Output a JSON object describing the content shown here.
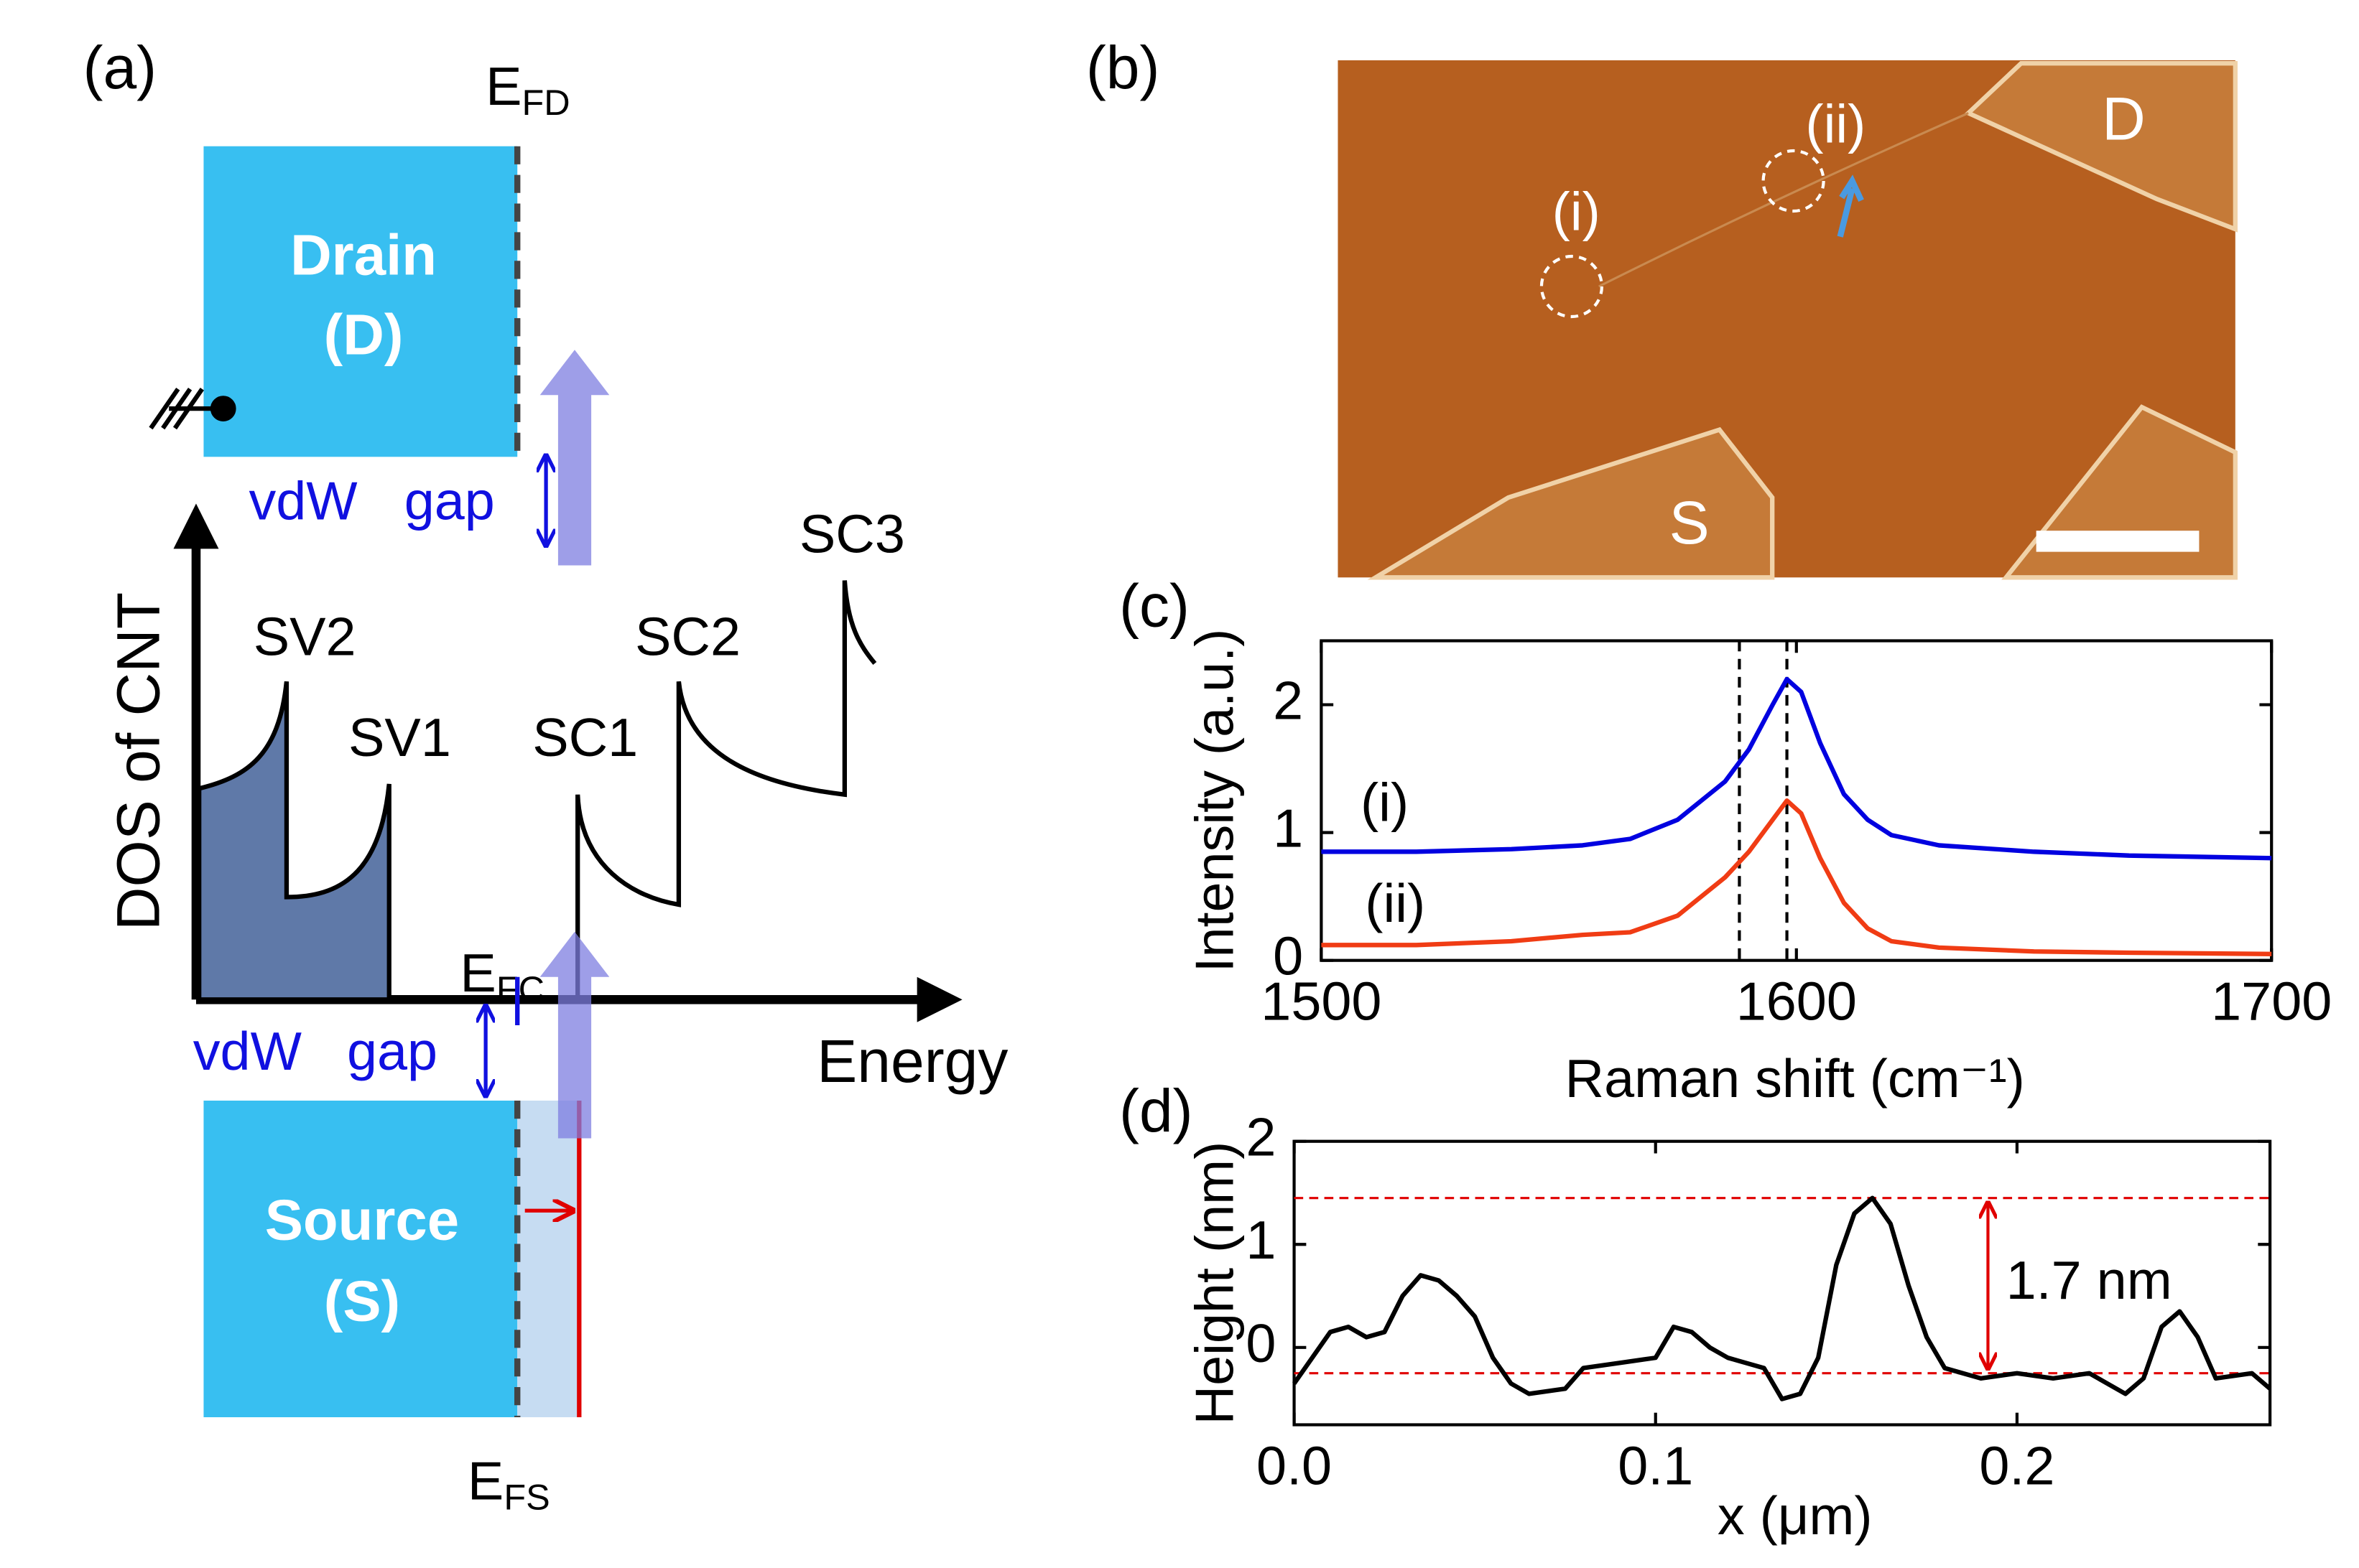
{
  "panel_a": {
    "label": "(a)",
    "efd": {
      "main": "E",
      "sub": "FD"
    },
    "drain": [
      "Drain",
      "(D)"
    ],
    "vdw_top": [
      "vdW",
      "gap"
    ],
    "dos_axis": "DOS of CNT",
    "peaks": [
      "SV2",
      "SV1",
      "SC1",
      "SC2",
      "SC3"
    ],
    "efc": {
      "main": "E",
      "sub": "FC"
    },
    "vdw_bottom": [
      "vdW",
      "gap"
    ],
    "energy_axis": "Energy",
    "source": [
      "Source",
      "(S)"
    ],
    "efs": {
      "main": "E",
      "sub": "FS"
    }
  },
  "panel_b": {
    "label": "(b)",
    "spots": [
      "(i)",
      "(ii)"
    ],
    "drain": "D",
    "source": "S"
  },
  "chart_data": [
    {
      "type": "line",
      "label": "(c)",
      "xlabel": "Raman shift (cm⁻¹)",
      "ylabel": "Intensity (a.u.)",
      "x": [
        1500,
        1520,
        1540,
        1555,
        1565,
        1575,
        1585,
        1590,
        1595,
        1598,
        1601,
        1605,
        1610,
        1615,
        1620,
        1630,
        1650,
        1670,
        1700
      ],
      "series": [
        {
          "name": "(i)",
          "color": "#0000e0",
          "values": [
            0.85,
            0.85,
            0.87,
            0.9,
            0.95,
            1.1,
            1.4,
            1.65,
            2.0,
            2.2,
            2.1,
            1.7,
            1.3,
            1.1,
            0.98,
            0.9,
            0.85,
            0.82,
            0.8
          ]
        },
        {
          "name": "(ii)",
          "color": "#f03c14",
          "values": [
            0.12,
            0.12,
            0.15,
            0.2,
            0.22,
            0.35,
            0.65,
            0.85,
            1.1,
            1.25,
            1.15,
            0.8,
            0.45,
            0.25,
            0.15,
            0.1,
            0.07,
            0.06,
            0.05
          ]
        }
      ],
      "xlim": [
        1500,
        1700
      ],
      "ylim": [
        0,
        2.5
      ],
      "xticks": [
        1500,
        1600,
        1700
      ],
      "yticks": [
        0,
        1,
        2
      ],
      "vlines": [
        1588,
        1598
      ]
    },
    {
      "type": "line",
      "label": "(d)",
      "xlabel": "x (μm)",
      "ylabel": "Height (nm)",
      "x": [
        0,
        0.005,
        0.01,
        0.015,
        0.02,
        0.025,
        0.03,
        0.035,
        0.04,
        0.045,
        0.05,
        0.055,
        0.06,
        0.065,
        0.075,
        0.08,
        0.09,
        0.1,
        0.105,
        0.11,
        0.115,
        0.12,
        0.125,
        0.13,
        0.135,
        0.14,
        0.145,
        0.15,
        0.155,
        0.16,
        0.165,
        0.17,
        0.175,
        0.18,
        0.19,
        0.2,
        0.21,
        0.22,
        0.23,
        0.235,
        0.24,
        0.245,
        0.25,
        0.255,
        0.265,
        0.27
      ],
      "series": [
        {
          "color": "#000000",
          "values": [
            -0.35,
            -0.1,
            0.15,
            0.2,
            0.1,
            0.15,
            0.5,
            0.7,
            0.65,
            0.5,
            0.3,
            -0.1,
            -0.35,
            -0.45,
            -0.4,
            -0.2,
            -0.15,
            -0.1,
            0.2,
            0.15,
            0.0,
            -0.1,
            -0.15,
            -0.2,
            -0.5,
            -0.45,
            -0.1,
            0.8,
            1.3,
            1.45,
            1.2,
            0.6,
            0.1,
            -0.2,
            -0.3,
            -0.25,
            -0.3,
            -0.25,
            -0.45,
            -0.3,
            0.2,
            0.35,
            0.1,
            -0.3,
            -0.25,
            -0.4
          ]
        }
      ],
      "xlim": [
        0,
        0.27
      ],
      "ylim": [
        -0.75,
        2
      ],
      "xticks": [
        {
          "value": 0,
          "label": "0.0"
        },
        {
          "value": 0.1,
          "label": "0.1"
        },
        {
          "value": 0.2,
          "label": "0.2"
        }
      ],
      "yticks": [
        0,
        1,
        2
      ],
      "hlines": [
        1.45,
        -0.25
      ],
      "hline_color": "#e00000",
      "annotation": "1.7 nm"
    }
  ]
}
